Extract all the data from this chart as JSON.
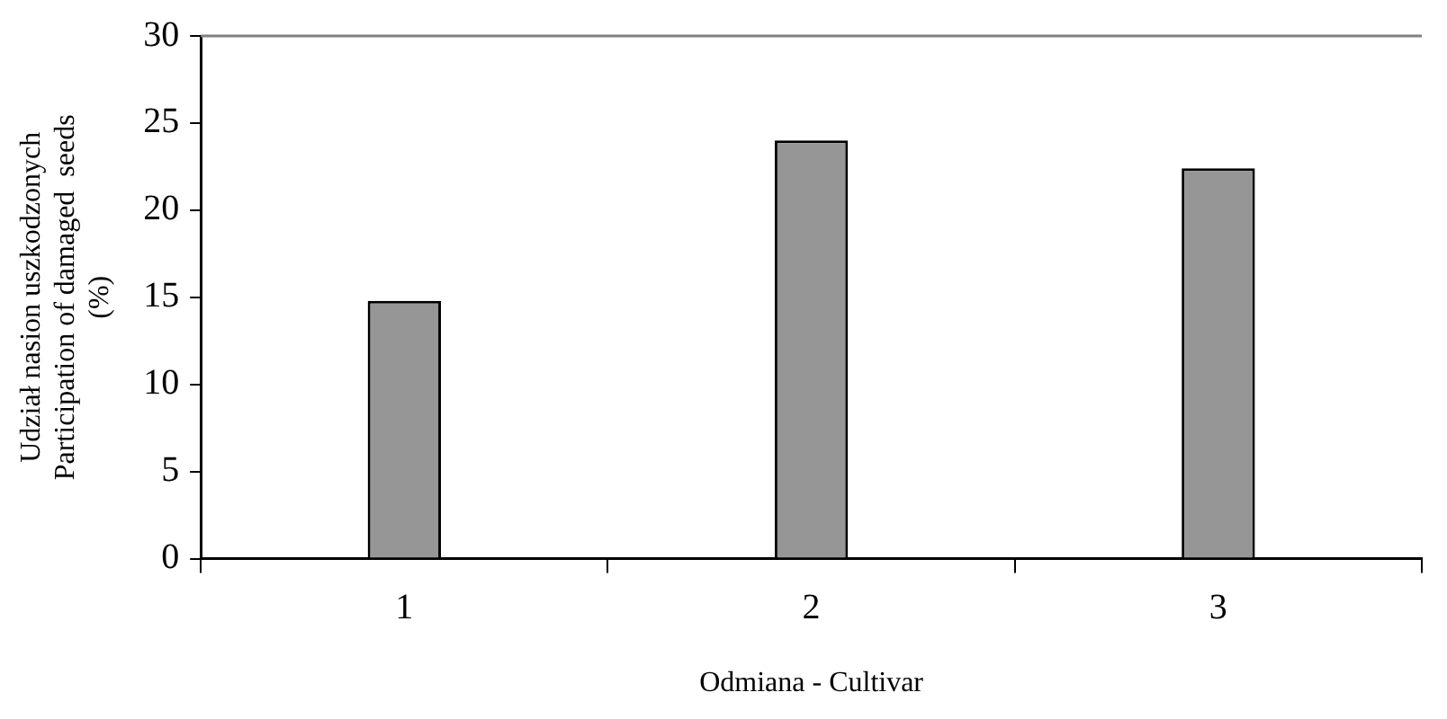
{
  "chart_data": {
    "type": "bar",
    "categories": [
      "1",
      "2",
      "3"
    ],
    "values": [
      14.8,
      24.0,
      22.4
    ],
    "color": "#969696",
    "xlabel": "Odmiana - Cultivar",
    "ylabel": "Udział nasion uszkodzonych\nParticipation of damaged  seeds\n(%)",
    "ylim": [
      0,
      30
    ],
    "yticks": [
      0,
      5,
      10,
      15,
      20,
      25,
      30
    ],
    "grid": false,
    "legend": false
  }
}
